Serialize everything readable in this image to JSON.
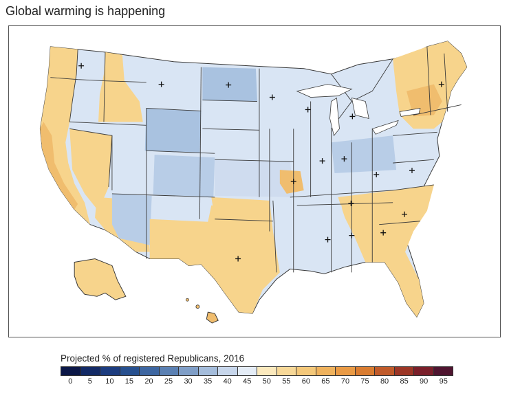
{
  "title": "Global warming is happening",
  "legend": {
    "title": "Projected % of registered Republicans, 2016",
    "ticks": [
      "0",
      "5",
      "10",
      "15",
      "20",
      "25",
      "30",
      "35",
      "40",
      "45",
      "50",
      "55",
      "60",
      "65",
      "70",
      "75",
      "80",
      "85",
      "90",
      "95"
    ],
    "colors": [
      "#0b1747",
      "#132a66",
      "#1c3c7f",
      "#27508f",
      "#3d66a1",
      "#5a80b3",
      "#7f9ec7",
      "#a4bcdb",
      "#c7d6eb",
      "#e4ecf6",
      "#fbe9bd",
      "#f7d898",
      "#f4c87a",
      "#efb25d",
      "#e99a45",
      "#d97c31",
      "#c05a2a",
      "#9c3626",
      "#7a1f2a",
      "#4f1530"
    ]
  },
  "colors": {
    "land_blue": "#d9e5f4",
    "mid_blue": "#a9c2e0",
    "dark_blue": "#8eaed6",
    "land_orange": "#f7d48c",
    "deep_orange": "#f0bd6e",
    "border": "#3a3a3a"
  }
}
